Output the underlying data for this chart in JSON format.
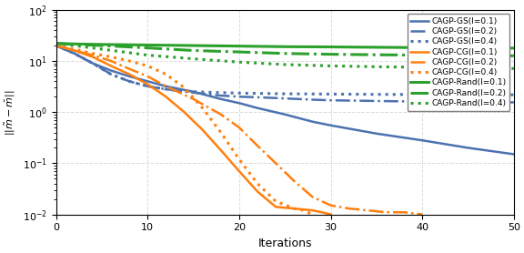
{
  "xlabel": "Iterations",
  "ylabel": "$||\\tilde{m} - \\bar{m}||$",
  "xlim": [
    0,
    50
  ],
  "blue_color": "#4C72B0",
  "orange_color": "#FF7F0E",
  "green_color": "#2CA02C",
  "legend_entries": [
    "CAGP-GS(l=0.1)",
    "CAGP-GS(l=0.2)",
    "CAGP-GS(l=0.4)",
    "CAGP-CG(l=0.1)",
    "CAGP-CG(l=0.2)",
    "CAGP-CG(l=0.4)",
    "CAGP-Rand(l=0.1)",
    "CAGP-Rand(l=0.2)",
    "CAGP-Rand(l=0.4)"
  ],
  "curves": {
    "gs_01": {
      "color": "#4C72B0",
      "ls": "solid",
      "lw": 1.8,
      "x": [
        0,
        2,
        4,
        6,
        8,
        10,
        12,
        15,
        18,
        20,
        22,
        25,
        28,
        30,
        35,
        40,
        45,
        50
      ],
      "y": [
        20,
        14,
        9,
        6.5,
        5,
        4,
        3.2,
        2.5,
        1.8,
        1.5,
        1.2,
        0.9,
        0.65,
        0.55,
        0.38,
        0.28,
        0.2,
        0.15
      ]
    },
    "gs_02": {
      "color": "#4C72B0",
      "ls": "dashdot",
      "lw": 1.8,
      "x": [
        0,
        2,
        4,
        6,
        8,
        10,
        12,
        15,
        18,
        20,
        22,
        25,
        28,
        30,
        35,
        40,
        45,
        50
      ],
      "y": [
        20,
        14,
        9,
        5.5,
        4,
        3.2,
        2.8,
        2.4,
        2.1,
        2.0,
        1.95,
        1.85,
        1.75,
        1.7,
        1.65,
        1.6,
        1.58,
        1.55
      ]
    },
    "gs_04": {
      "color": "#4C72B0",
      "ls": "dotted",
      "lw": 2.2,
      "x": [
        0,
        2,
        4,
        6,
        8,
        10,
        12,
        15,
        18,
        20,
        22,
        25,
        30,
        35,
        40,
        45,
        50
      ],
      "y": [
        20,
        14,
        9,
        5.5,
        4,
        3.2,
        2.8,
        2.5,
        2.4,
        2.35,
        2.32,
        2.28,
        2.25,
        2.22,
        2.2,
        2.2,
        2.18
      ]
    },
    "cg_01": {
      "color": "#FF7F0E",
      "ls": "solid",
      "lw": 1.8,
      "x": [
        0,
        2,
        4,
        6,
        8,
        10,
        12,
        14,
        16,
        18,
        20,
        22,
        24,
        26,
        28,
        29,
        30
      ],
      "y": [
        20,
        16,
        12,
        8,
        5.5,
        3.5,
        2.0,
        1.0,
        0.45,
        0.18,
        0.07,
        0.028,
        0.014,
        0.013,
        0.012,
        0.011,
        0.01
      ]
    },
    "cg_02": {
      "color": "#FF7F0E",
      "ls": "dashdot",
      "lw": 1.8,
      "x": [
        0,
        2,
        4,
        6,
        8,
        10,
        12,
        15,
        18,
        20,
        22,
        24,
        26,
        28,
        30,
        32,
        34,
        36,
        38,
        40
      ],
      "y": [
        20,
        16,
        13,
        10,
        7,
        5,
        3.2,
        1.8,
        0.9,
        0.5,
        0.22,
        0.1,
        0.045,
        0.022,
        0.015,
        0.013,
        0.012,
        0.011,
        0.011,
        0.01
      ]
    },
    "cg_04": {
      "color": "#FF7F0E",
      "ls": "dotted",
      "lw": 2.2,
      "x": [
        0,
        2,
        4,
        6,
        8,
        10,
        12,
        14,
        16,
        18,
        20,
        22,
        24,
        26,
        27,
        28
      ],
      "y": [
        20,
        17,
        14,
        12,
        10,
        8,
        5.5,
        3.0,
        1.2,
        0.4,
        0.12,
        0.04,
        0.018,
        0.013,
        0.012,
        0.01
      ]
    },
    "rand_01": {
      "color": "#2CA02C",
      "ls": "solid",
      "lw": 2.2,
      "x": [
        0,
        2,
        5,
        10,
        15,
        20,
        25,
        30,
        35,
        40,
        45,
        50
      ],
      "y": [
        22,
        21.5,
        21,
        20.5,
        20,
        19.5,
        19,
        18.8,
        18.5,
        18.2,
        18,
        17.8
      ]
    },
    "rand_02": {
      "color": "#2CA02C",
      "ls": "dashdot",
      "lw": 2.2,
      "x": [
        0,
        2,
        5,
        10,
        15,
        20,
        25,
        30,
        35,
        40,
        45,
        50
      ],
      "y": [
        22,
        21,
        20,
        18,
        16,
        15,
        14,
        13.5,
        13.2,
        13,
        12.8,
        12.6
      ]
    },
    "rand_04": {
      "color": "#2CA02C",
      "ls": "dotted",
      "lw": 2.2,
      "x": [
        0,
        2,
        5,
        10,
        15,
        20,
        25,
        30,
        35,
        40,
        45,
        50
      ],
      "y": [
        22,
        20,
        17,
        13,
        11,
        9.5,
        8.5,
        8.0,
        7.7,
        7.5,
        7.3,
        7.1
      ]
    }
  },
  "figsize": [
    5.76,
    2.78
  ],
  "dpi": 100
}
